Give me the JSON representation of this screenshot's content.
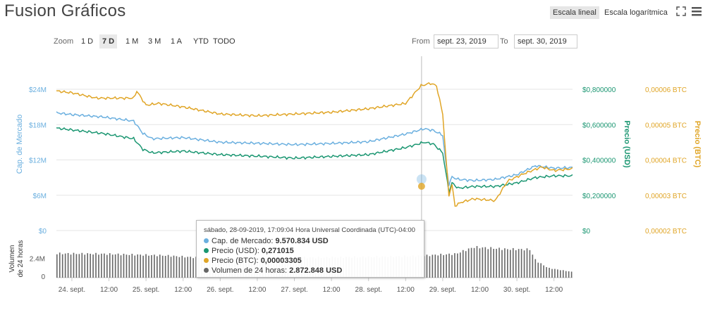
{
  "header": {
    "title": "Fusion Gráficos",
    "scale_linear": "Escala lineal",
    "scale_log": "Escala logarítmica"
  },
  "zoom": {
    "label": "Zoom",
    "options": [
      "1 D",
      "7 D",
      "1 M",
      "3 M",
      "1 A",
      "YTD",
      "TODO"
    ],
    "active": "7 D"
  },
  "range": {
    "from_label": "From",
    "from_value": "sept. 23, 2019",
    "to_label": "To",
    "to_value": "sept. 30, 2019"
  },
  "tooltip": {
    "header": "sábado, 28-09-2019, 17:09:04 Hora Universal Coordinada (UTC)-04:00",
    "rows": [
      {
        "label": "Cap. de Mercado:",
        "value": "9.570.834 USD"
      },
      {
        "label": "Precio (USD):",
        "value": "0,271015"
      },
      {
        "label": "Precio (BTC):",
        "value": "0,00003305"
      },
      {
        "label": "Volumen de 24 horas:",
        "value": "2.872.848 USD"
      }
    ]
  },
  "colors": {
    "market_cap": "#6aafdf",
    "price_usd": "#1a9671",
    "price_btc": "#e0a526",
    "volume": "#666666",
    "grid": "#e6e6e6"
  },
  "chart_data": {
    "type": "line",
    "x_ticks": [
      "24. sept.",
      "12:00",
      "25. sept.",
      "12:00",
      "26. sept.",
      "12:00",
      "27. sept.",
      "12:00",
      "28. sept.",
      "12:00",
      "29. sept.",
      "12:00",
      "30. sept.",
      "12:00"
    ],
    "axes": {
      "market_cap": {
        "label": "Cap. de Mercado",
        "ticks": [
          "$0",
          "$6M",
          "$12M",
          "$18M",
          "$24M"
        ],
        "range": [
          0,
          24000000
        ]
      },
      "price_usd": {
        "label": "Precio (USD)",
        "ticks": [
          "$0",
          "$0,200000",
          "$0,400000",
          "$0,600000",
          "$0,800000"
        ],
        "range": [
          0,
          0.8
        ]
      },
      "price_btc": {
        "label": "Precio (BTC)",
        "ticks": [
          "0,00002 BTC",
          "0,00003 BTC",
          "0,00004 BTC",
          "0,00005 BTC",
          "0,00006 BTC"
        ],
        "range": [
          2e-05,
          6e-05
        ]
      },
      "volume": {
        "label": "Volumen de 24 horas",
        "ticks": [
          "0",
          "2.4M"
        ],
        "range": [
          0,
          4800000
        ]
      }
    },
    "time_range_hours": [
      -5,
      162
    ],
    "series": [
      {
        "name": "Cap. de Mercado",
        "axis": "market_cap",
        "t": [
          -5,
          0,
          10,
          20,
          23,
          26,
          36,
          48,
          62,
          72,
          84,
          96,
          108,
          114,
          117,
          120,
          121,
          122,
          123,
          125,
          130,
          137,
          144,
          150,
          156,
          162
        ],
        "values": [
          20000000,
          19700000,
          19300000,
          18600000,
          16500000,
          15600000,
          15800000,
          15000000,
          14800000,
          14600000,
          14800000,
          15100000,
          16400000,
          17300000,
          17000000,
          16200000,
          11500000,
          7800000,
          9100000,
          8700000,
          8500000,
          8700000,
          9500000,
          11000000,
          10600000,
          10700000
        ]
      },
      {
        "name": "Precio (USD)",
        "axis": "price_usd",
        "t": [
          -5,
          0,
          10,
          20,
          23,
          26,
          36,
          48,
          62,
          72,
          84,
          96,
          108,
          114,
          117,
          120,
          121,
          122,
          123,
          125,
          130,
          137,
          144,
          150,
          156,
          162
        ],
        "values": [
          0.58,
          0.57,
          0.55,
          0.52,
          0.46,
          0.44,
          0.45,
          0.43,
          0.42,
          0.41,
          0.42,
          0.43,
          0.47,
          0.5,
          0.49,
          0.44,
          0.33,
          0.22,
          0.27,
          0.24,
          0.25,
          0.25,
          0.27,
          0.3,
          0.31,
          0.31
        ]
      },
      {
        "name": "Precio (BTC)",
        "axis": "price_btc",
        "t": [
          -5,
          0,
          8,
          20,
          21,
          24,
          28,
          36,
          48,
          60,
          72,
          84,
          96,
          108,
          113,
          116,
          118,
          120,
          121,
          122,
          123,
          124,
          126,
          130,
          137,
          141,
          146,
          152,
          156,
          162
        ],
        "values": [
          5.95e-05,
          5.9e-05,
          5.75e-05,
          5.75e-05,
          5.95e-05,
          5.55e-05,
          5.6e-05,
          5.5e-05,
          5.3e-05,
          5.25e-05,
          5.3e-05,
          5.35e-05,
          5.45e-05,
          5.6e-05,
          6.1e-05,
          6.17e-05,
          6.1e-05,
          5.3e-05,
          4.1e-05,
          3e-05,
          3.3e-05,
          2.7e-05,
          2.8e-05,
          2.9e-05,
          2.85e-05,
          3.4e-05,
          3.6e-05,
          3.8e-05,
          3.7e-05,
          3.75e-05
        ]
      },
      {
        "name": "Volumen de 24 horas",
        "axis": "volume",
        "type": "bar",
        "t": [
          -5,
          10,
          20,
          30,
          40,
          50,
          60,
          70,
          80,
          90,
          100,
          108,
          115,
          118,
          120,
          124,
          126,
          130,
          140,
          148,
          150,
          154,
          162
        ],
        "values": [
          3000000,
          2950000,
          2850000,
          2750000,
          2500000,
          2400000,
          2450000,
          2500000,
          2500000,
          2550000,
          2600000,
          2650000,
          2750000,
          2850000,
          2870000,
          2950000,
          3250000,
          3800000,
          3550000,
          3500000,
          2100000,
          1200000,
          700000
        ]
      }
    ]
  }
}
